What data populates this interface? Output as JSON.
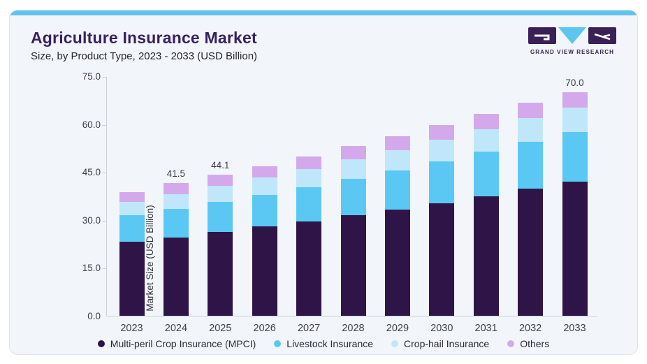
{
  "header": {
    "title": "Agriculture Insurance Market",
    "subtitle": "Size, by Product Type, 2023 - 2033 (USD Billion)",
    "brand_name": "GRAND VIEW RESEARCH"
  },
  "colors": {
    "accent_bar": "#5ec3ee",
    "card_background": "#f2f6fa",
    "brand_purple": "#3a2057",
    "brand_triangle_blue": "#5bc6f0",
    "title_purple": "#3a1f62",
    "axis_line": "#c9d2da"
  },
  "chart_data": {
    "type": "bar",
    "stacked": true,
    "title": "Agriculture Insurance Market Size, by Product Type, 2023 - 2033 (USD Billion)",
    "ylabel": "Market Size (USD Billion)",
    "ylim": [
      0,
      75
    ],
    "yticks": [
      "0.0",
      "15.0",
      "30.0",
      "45.0",
      "60.0",
      "75.0"
    ],
    "grid": false,
    "legend_position": "bottom",
    "categories": [
      "2023",
      "2024",
      "2025",
      "2026",
      "2027",
      "2028",
      "2029",
      "2030",
      "2031",
      "2032",
      "2033"
    ],
    "series": [
      {
        "name": "Multi-peril Crop Insurance (MPCI)",
        "color": "#2f1547",
        "values": [
          23.1,
          24.6,
          26.2,
          27.9,
          29.6,
          31.4,
          33.3,
          35.3,
          37.5,
          39.7,
          41.9
        ]
      },
      {
        "name": "Livestock Insurance",
        "color": "#5bc8f3",
        "values": [
          8.3,
          8.8,
          9.4,
          10.0,
          10.7,
          11.5,
          12.2,
          13.0,
          13.8,
          14.7,
          15.6
        ]
      },
      {
        "name": "Crop-hail Insurance",
        "color": "#bfe7f9",
        "values": [
          4.3,
          4.6,
          5.0,
          5.3,
          5.7,
          6.1,
          6.4,
          6.8,
          7.1,
          7.4,
          7.6
        ]
      },
      {
        "name": "Others",
        "color": "#d3a9eb",
        "values": [
          3.1,
          3.5,
          3.5,
          3.7,
          3.9,
          4.1,
          4.4,
          4.6,
          4.8,
          5.0,
          4.9
        ]
      }
    ],
    "totals_shown": {
      "2024": "41.5",
      "2025": "44.1",
      "2033": "70.0"
    }
  }
}
